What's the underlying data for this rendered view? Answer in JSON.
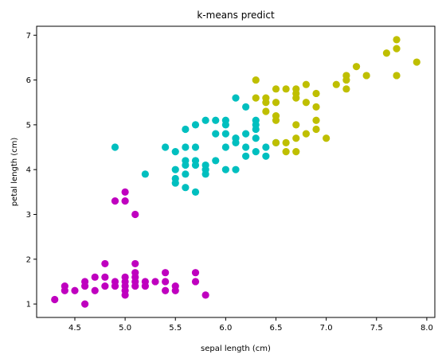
{
  "chart_data": {
    "type": "scatter",
    "title": "k-means predict",
    "xlabel": "sepal length (cm)",
    "ylabel": "petal length (cm)",
    "xlim": [
      4.12,
      8.08
    ],
    "ylim": [
      0.7,
      7.2
    ],
    "xticks": [
      "4.5",
      "5.0",
      "5.5",
      "6.0",
      "6.5",
      "7.0",
      "7.5",
      "8.0"
    ],
    "yticks": [
      "1",
      "2",
      "3",
      "4",
      "5",
      "6",
      "7"
    ],
    "grid": false,
    "series": [
      {
        "color": "#bf00bf",
        "points": [
          [
            4.3,
            1.1
          ],
          [
            4.4,
            1.3
          ],
          [
            4.4,
            1.4
          ],
          [
            4.5,
            1.3
          ],
          [
            4.6,
            1.0
          ],
          [
            4.6,
            1.4
          ],
          [
            4.6,
            1.5
          ],
          [
            4.7,
            1.3
          ],
          [
            4.7,
            1.6
          ],
          [
            4.8,
            1.4
          ],
          [
            4.8,
            1.6
          ],
          [
            4.8,
            1.9
          ],
          [
            4.9,
            1.4
          ],
          [
            4.9,
            1.5
          ],
          [
            4.9,
            3.3
          ],
          [
            5.0,
            1.2
          ],
          [
            5.0,
            1.3
          ],
          [
            5.0,
            1.4
          ],
          [
            5.0,
            1.5
          ],
          [
            5.0,
            1.6
          ],
          [
            5.0,
            3.3
          ],
          [
            5.0,
            3.5
          ],
          [
            5.1,
            1.4
          ],
          [
            5.1,
            1.5
          ],
          [
            5.1,
            1.6
          ],
          [
            5.1,
            1.7
          ],
          [
            5.1,
            1.9
          ],
          [
            5.1,
            3.0
          ],
          [
            5.2,
            1.4
          ],
          [
            5.2,
            1.5
          ],
          [
            5.3,
            1.5
          ],
          [
            5.4,
            1.3
          ],
          [
            5.4,
            1.5
          ],
          [
            5.4,
            1.7
          ],
          [
            5.5,
            1.3
          ],
          [
            5.5,
            1.4
          ],
          [
            5.7,
            1.5
          ],
          [
            5.7,
            1.7
          ],
          [
            5.8,
            1.2
          ]
        ]
      },
      {
        "color": "#00bfbf",
        "points": [
          [
            4.9,
            4.5
          ],
          [
            5.2,
            3.9
          ],
          [
            5.4,
            4.5
          ],
          [
            5.5,
            3.7
          ],
          [
            5.5,
            3.8
          ],
          [
            5.5,
            4.0
          ],
          [
            5.5,
            4.4
          ],
          [
            5.6,
            3.6
          ],
          [
            5.6,
            3.9
          ],
          [
            5.6,
            4.1
          ],
          [
            5.6,
            4.2
          ],
          [
            5.6,
            4.5
          ],
          [
            5.6,
            4.9
          ],
          [
            5.7,
            3.5
          ],
          [
            5.7,
            4.1
          ],
          [
            5.7,
            4.2
          ],
          [
            5.7,
            4.5
          ],
          [
            5.7,
            5.0
          ],
          [
            5.8,
            3.9
          ],
          [
            5.8,
            4.0
          ],
          [
            5.8,
            4.1
          ],
          [
            5.8,
            5.1
          ],
          [
            5.9,
            4.2
          ],
          [
            5.9,
            4.8
          ],
          [
            5.9,
            5.1
          ],
          [
            6.0,
            4.0
          ],
          [
            6.0,
            4.5
          ],
          [
            6.0,
            4.8
          ],
          [
            6.0,
            5.0
          ],
          [
            6.0,
            5.1
          ],
          [
            6.1,
            4.0
          ],
          [
            6.1,
            4.6
          ],
          [
            6.1,
            4.7
          ],
          [
            6.1,
            5.6
          ],
          [
            6.2,
            4.3
          ],
          [
            6.2,
            4.5
          ],
          [
            6.2,
            4.8
          ],
          [
            6.3,
            4.4
          ],
          [
            6.3,
            4.7
          ],
          [
            6.3,
            4.9
          ],
          [
            6.3,
            5.0
          ],
          [
            6.3,
            5.1
          ],
          [
            6.4,
            4.3
          ],
          [
            6.4,
            4.5
          ],
          [
            6.5,
            4.6
          ],
          [
            6.1,
            4.7
          ],
          [
            6.2,
            5.4
          ]
        ]
      },
      {
        "color": "#bfbf00",
        "points": [
          [
            6.3,
            5.6
          ],
          [
            6.3,
            6.0
          ],
          [
            6.4,
            5.3
          ],
          [
            6.4,
            5.5
          ],
          [
            6.4,
            5.6
          ],
          [
            6.5,
            4.6
          ],
          [
            6.5,
            5.1
          ],
          [
            6.5,
            5.2
          ],
          [
            6.5,
            5.5
          ],
          [
            6.5,
            5.8
          ],
          [
            6.6,
            4.4
          ],
          [
            6.6,
            4.6
          ],
          [
            6.7,
            4.4
          ],
          [
            6.7,
            4.7
          ],
          [
            6.7,
            5.0
          ],
          [
            6.7,
            5.6
          ],
          [
            6.7,
            5.7
          ],
          [
            6.7,
            5.8
          ],
          [
            6.8,
            4.8
          ],
          [
            6.8,
            5.5
          ],
          [
            6.8,
            5.9
          ],
          [
            6.9,
            4.9
          ],
          [
            6.9,
            5.1
          ],
          [
            6.9,
            5.4
          ],
          [
            6.9,
            5.7
          ],
          [
            7.0,
            4.7
          ],
          [
            7.1,
            5.9
          ],
          [
            7.2,
            5.8
          ],
          [
            7.2,
            6.0
          ],
          [
            7.2,
            6.1
          ],
          [
            7.3,
            6.3
          ],
          [
            7.4,
            6.1
          ],
          [
            7.6,
            6.6
          ],
          [
            7.7,
            6.1
          ],
          [
            7.7,
            6.7
          ],
          [
            7.7,
            6.9
          ],
          [
            7.9,
            6.4
          ],
          [
            6.6,
            5.8
          ]
        ]
      }
    ]
  }
}
